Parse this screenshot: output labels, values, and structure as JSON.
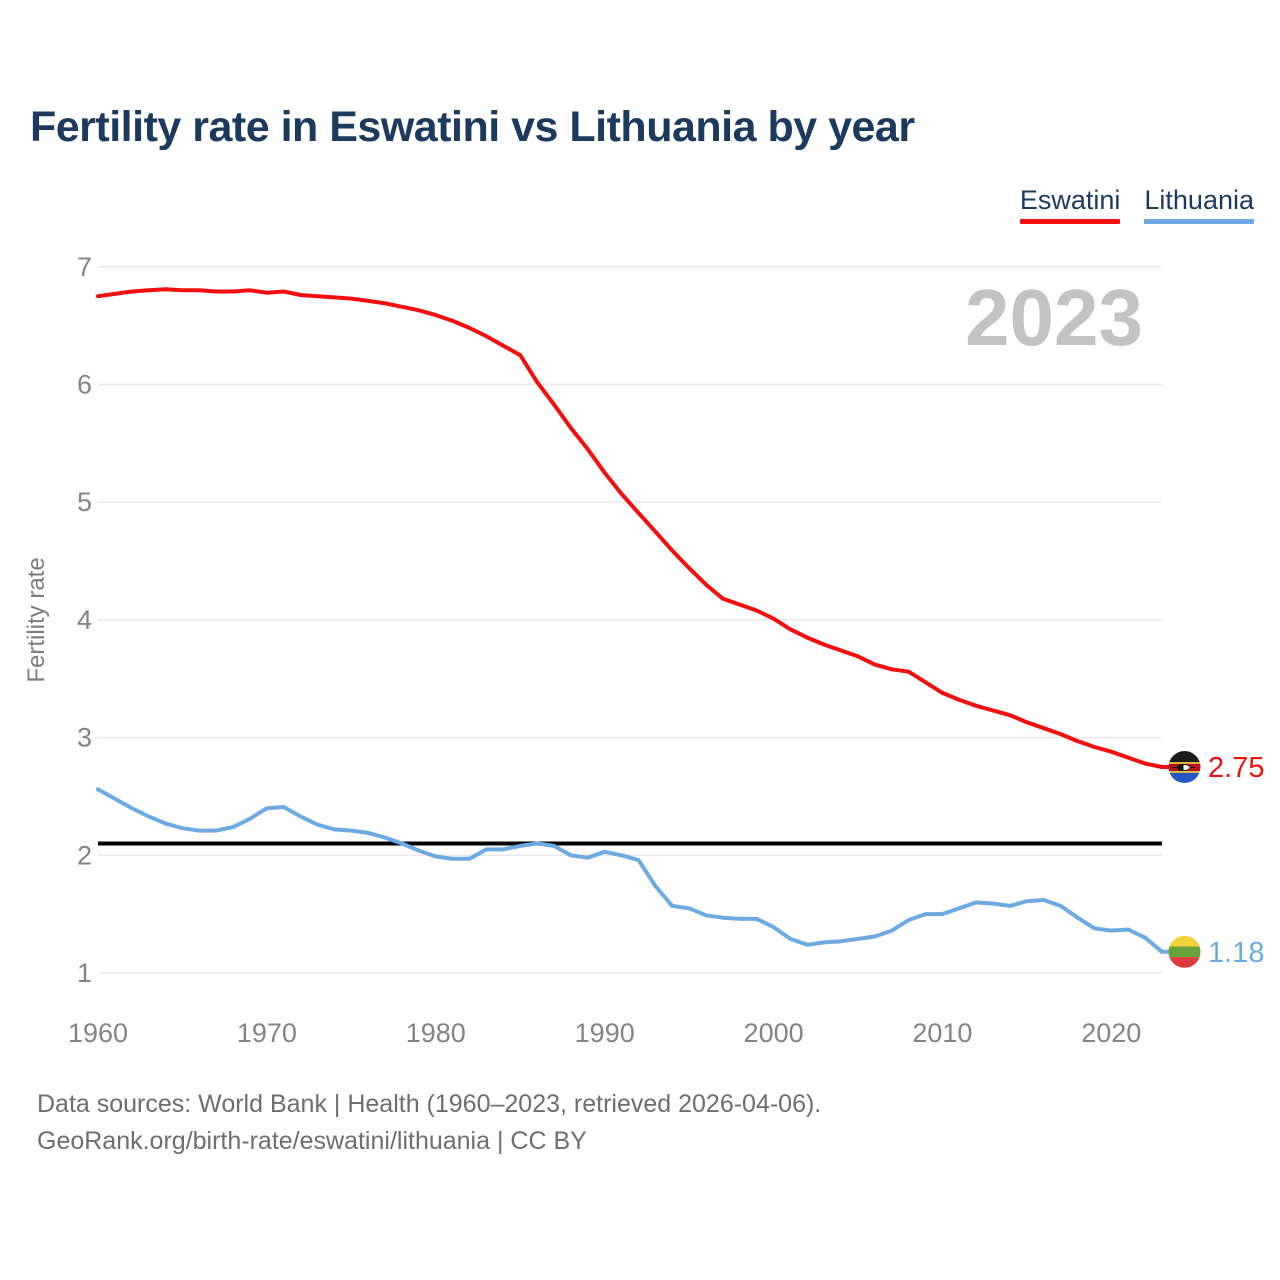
{
  "title": "Fertility rate in Eswatini vs Lithuania by year",
  "watermark_year": "2023",
  "legend": [
    {
      "label": "Eswatini",
      "color": "#f40e0e"
    },
    {
      "label": "Lithuania",
      "color": "#6caae4"
    }
  ],
  "end_labels": {
    "eswatini": "2.75",
    "lithuania": "1.18"
  },
  "footer": {
    "line1": "Data sources: World Bank | Health (1960–2023, retrieved 2026-04-06).",
    "line2": "GeoRank.org/birth-rate/eswatini/lithuania | CC BY"
  },
  "chart_data": {
    "type": "line",
    "title": "Fertility rate in Eswatini vs Lithuania by year",
    "xlabel": "",
    "ylabel": "Fertility rate",
    "x_ticks": [
      1960,
      1970,
      1980,
      1990,
      2000,
      2010,
      2020
    ],
    "y_ticks": [
      1,
      2,
      3,
      4,
      5,
      6,
      7
    ],
    "ylim": [
      1,
      7
    ],
    "grid": true,
    "legend_position": "top-right",
    "reference_line": {
      "value": 2.1,
      "color": "#000000"
    },
    "x": [
      1960,
      1961,
      1962,
      1963,
      1964,
      1965,
      1966,
      1967,
      1968,
      1969,
      1970,
      1971,
      1972,
      1973,
      1974,
      1975,
      1976,
      1977,
      1978,
      1979,
      1980,
      1981,
      1982,
      1983,
      1984,
      1985,
      1986,
      1987,
      1988,
      1989,
      1990,
      1991,
      1992,
      1993,
      1994,
      1995,
      1996,
      1997,
      1998,
      1999,
      2000,
      2001,
      2002,
      2003,
      2004,
      2005,
      2006,
      2007,
      2008,
      2009,
      2010,
      2011,
      2012,
      2013,
      2014,
      2015,
      2016,
      2017,
      2018,
      2019,
      2020,
      2021,
      2022,
      2023
    ],
    "series": [
      {
        "name": "Eswatini",
        "color": "#f40e0e",
        "last_value": 2.75,
        "values": [
          6.75,
          6.77,
          6.79,
          6.8,
          6.81,
          6.8,
          6.8,
          6.79,
          6.79,
          6.8,
          6.78,
          6.79,
          6.76,
          6.75,
          6.74,
          6.73,
          6.71,
          6.69,
          6.66,
          6.63,
          6.59,
          6.54,
          6.48,
          6.41,
          6.33,
          6.25,
          6.02,
          5.83,
          5.63,
          5.45,
          5.25,
          5.07,
          4.91,
          4.75,
          4.59,
          4.44,
          4.3,
          4.18,
          4.13,
          4.08,
          4.01,
          3.92,
          3.85,
          3.79,
          3.74,
          3.69,
          3.62,
          3.58,
          3.56,
          3.47,
          3.38,
          3.32,
          3.27,
          3.23,
          3.19,
          3.13,
          3.08,
          3.03,
          2.97,
          2.92,
          2.88,
          2.83,
          2.78,
          2.75
        ]
      },
      {
        "name": "Lithuania",
        "color": "#6caae4",
        "last_value": 1.18,
        "values": [
          2.56,
          2.48,
          2.4,
          2.33,
          2.27,
          2.23,
          2.21,
          2.21,
          2.24,
          2.31,
          2.4,
          2.41,
          2.33,
          2.26,
          2.22,
          2.21,
          2.19,
          2.15,
          2.1,
          2.04,
          1.99,
          1.97,
          1.97,
          2.05,
          2.05,
          2.08,
          2.1,
          2.08,
          2.0,
          1.98,
          2.03,
          2.0,
          1.96,
          1.74,
          1.57,
          1.55,
          1.49,
          1.47,
          1.46,
          1.46,
          1.39,
          1.29,
          1.24,
          1.26,
          1.27,
          1.29,
          1.31,
          1.36,
          1.45,
          1.5,
          1.5,
          1.55,
          1.6,
          1.59,
          1.57,
          1.61,
          1.62,
          1.57,
          1.47,
          1.38,
          1.36,
          1.37,
          1.3,
          1.18
        ]
      }
    ]
  }
}
